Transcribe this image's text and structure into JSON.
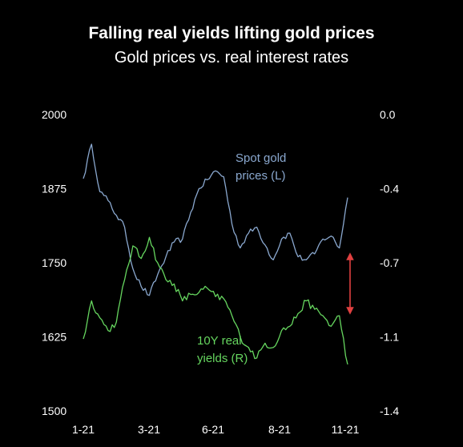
{
  "chart_data": {
    "type": "line",
    "title": "Falling real yields lifting gold prices",
    "subtitle": "Gold prices vs. real interest rates",
    "x_ticks": [
      "1-21",
      "3-21",
      "6-21",
      "8-21",
      "11-21"
    ],
    "y_left": {
      "ticks": [
        "2000",
        "1875",
        "1750",
        "1625",
        "1500"
      ],
      "ylim": [
        1500,
        2000
      ]
    },
    "y_right": {
      "ticks": [
        "0.0",
        "-0.4",
        "-0.7",
        "-1.1",
        "-1.4"
      ],
      "ylim": [
        -1.4,
        0.0
      ]
    },
    "grid": false,
    "series": [
      {
        "name": "Spot gold prices (L)",
        "axis": "left",
        "color": "#8aa8cf",
        "x": [
          "1-21",
          "1-21",
          "1-21",
          "2-21",
          "2-21",
          "2-21",
          "3-21",
          "3-21",
          "3-21",
          "4-21",
          "4-21",
          "4-21",
          "5-21",
          "5-21",
          "5-21",
          "6-21",
          "6-21",
          "6-21",
          "6-21",
          "7-21",
          "7-21",
          "8-21",
          "8-21",
          "8-21",
          "8-21",
          "9-21",
          "9-21",
          "9-21",
          "10-21",
          "10-21",
          "10-21",
          "11-21",
          "11-21"
        ],
        "values": [
          1892,
          1950,
          1870,
          1855,
          1830,
          1810,
          1740,
          1710,
          1695,
          1730,
          1760,
          1785,
          1790,
          1835,
          1875,
          1890,
          1905,
          1895,
          1815,
          1775,
          1800,
          1810,
          1780,
          1755,
          1790,
          1800,
          1760,
          1755,
          1765,
          1790,
          1795,
          1775,
          1860
        ]
      },
      {
        "name": "10Y real yields (R)",
        "axis": "right",
        "color": "#66d65f",
        "x": [
          "1-21",
          "1-21",
          "1-21",
          "2-21",
          "2-21",
          "2-21",
          "3-21",
          "3-21",
          "3-21",
          "4-21",
          "4-21",
          "4-21",
          "5-21",
          "5-21",
          "5-21",
          "6-21",
          "6-21",
          "6-21",
          "6-21",
          "7-21",
          "7-21",
          "8-21",
          "8-21",
          "8-21",
          "8-21",
          "9-21",
          "9-21",
          "9-21",
          "10-21",
          "10-21",
          "10-21",
          "11-21",
          "11-21"
        ],
        "values": [
          -1.06,
          -0.88,
          -0.96,
          -1.02,
          -0.98,
          -0.78,
          -0.62,
          -0.68,
          -0.58,
          -0.7,
          -0.78,
          -0.8,
          -0.88,
          -0.85,
          -0.84,
          -0.82,
          -0.86,
          -0.87,
          -0.95,
          -1.05,
          -1.1,
          -1.15,
          -1.08,
          -1.1,
          -1.02,
          -1.0,
          -0.94,
          -0.88,
          -0.92,
          -0.95,
          -1.0,
          -0.95,
          -1.18
        ]
      }
    ],
    "annotations": [
      {
        "id": "gold",
        "lines": [
          "Spot gold",
          "prices (L)"
        ],
        "color": "#8aa8cf"
      },
      {
        "id": "yields",
        "lines": [
          "10Y real",
          "yields (R)"
        ],
        "color": "#66d65f"
      },
      {
        "id": "gap-arrow",
        "color": "#e04040"
      }
    ]
  }
}
